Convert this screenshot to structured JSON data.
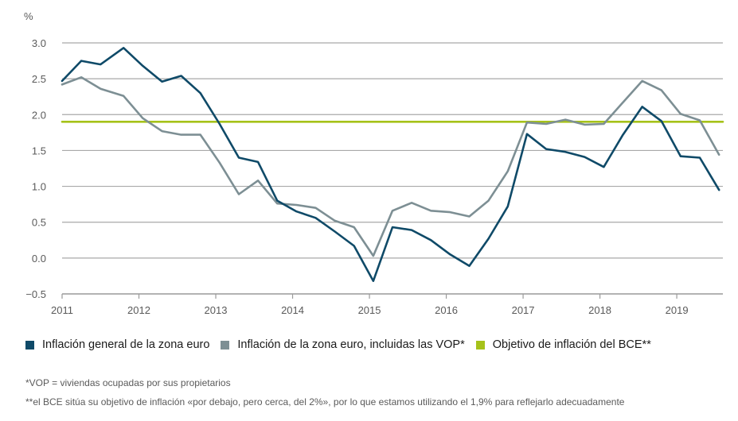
{
  "chart_data": {
    "type": "line",
    "unit_label": "%",
    "xlim": [
      2011,
      2019.6
    ],
    "ylim": [
      -0.5,
      3.0
    ],
    "yticks": [
      3.0,
      2.5,
      2.0,
      1.5,
      1.0,
      0.5,
      0.0,
      -0.5
    ],
    "ytick_labels": [
      "3.0",
      "2.5",
      "2.0",
      "1.5",
      "1.0",
      "0.5",
      "0.0",
      "−0.5"
    ],
    "xticks": [
      2011,
      2012,
      2013,
      2014,
      2015,
      2016,
      2017,
      2018,
      2019
    ],
    "xtick_labels": [
      "2011",
      "2012",
      "2013",
      "2014",
      "2015",
      "2016",
      "2017",
      "2018",
      "2019"
    ],
    "grid": "horizontal",
    "series": [
      {
        "name": "Inflación general de la zona euro",
        "color": "#0f4a68",
        "x": [
          2011.0,
          2011.25,
          2011.5,
          2011.8,
          2012.05,
          2012.3,
          2012.55,
          2012.8,
          2013.05,
          2013.3,
          2013.55,
          2013.8,
          2014.05,
          2014.3,
          2014.55,
          2014.8,
          2015.05,
          2015.3,
          2015.55,
          2015.8,
          2016.05,
          2016.3,
          2016.55,
          2016.8,
          2017.05,
          2017.3,
          2017.55,
          2017.8,
          2018.05,
          2018.3,
          2018.55,
          2018.8,
          2019.05,
          2019.3,
          2019.55
        ],
        "y": [
          2.47,
          2.75,
          2.7,
          2.93,
          2.68,
          2.46,
          2.54,
          2.3,
          1.87,
          1.4,
          1.34,
          0.8,
          0.65,
          0.56,
          0.37,
          0.17,
          -0.32,
          0.43,
          0.39,
          0.25,
          0.05,
          -0.11,
          0.27,
          0.72,
          1.73,
          1.52,
          1.48,
          1.41,
          1.27,
          1.72,
          2.11,
          1.91,
          1.42,
          1.4,
          0.95
        ]
      },
      {
        "name": "Inflación de la zona euro, incluidas las VOP*",
        "color": "#7d8f94",
        "x": [
          2011.0,
          2011.25,
          2011.5,
          2011.8,
          2012.05,
          2012.3,
          2012.55,
          2012.8,
          2013.05,
          2013.3,
          2013.55,
          2013.8,
          2014.05,
          2014.3,
          2014.55,
          2014.8,
          2015.05,
          2015.3,
          2015.55,
          2015.8,
          2016.05,
          2016.3,
          2016.55,
          2016.8,
          2017.05,
          2017.3,
          2017.55,
          2017.8,
          2018.05,
          2018.3,
          2018.55,
          2018.8,
          2019.05,
          2019.3,
          2019.55
        ],
        "y": [
          2.42,
          2.52,
          2.36,
          2.26,
          1.95,
          1.77,
          1.72,
          1.72,
          1.33,
          0.89,
          1.08,
          0.76,
          0.74,
          0.7,
          0.52,
          0.43,
          0.03,
          0.66,
          0.77,
          0.66,
          0.64,
          0.58,
          0.8,
          1.21,
          1.89,
          1.87,
          1.93,
          1.86,
          1.87,
          2.17,
          2.47,
          2.34,
          2.01,
          1.92,
          1.44
        ]
      },
      {
        "name": "Objetivo de inflación del BCE**",
        "color": "#a6c21a",
        "x": [
          2011.0,
          2019.6
        ],
        "y": [
          1.9,
          1.9
        ]
      }
    ]
  },
  "legend": {
    "items": [
      {
        "label": "Inflación general de la zona euro",
        "color": "#0f4a68"
      },
      {
        "label": "Inflación de la zona euro, incluidas las VOP*",
        "color": "#7d8f94"
      },
      {
        "label": "Objetivo de inflación del BCE**",
        "color": "#a6c21a"
      }
    ]
  },
  "footnotes": {
    "vop": "*VOP = viviendas ocupadas por sus propietarios",
    "bce": "**el BCE sitúa su objetivo de inflación «por debajo, pero cerca, del 2%», por lo que estamos utilizando el 1,9% para reflejarlo adecuadamente"
  },
  "colors": {
    "grid": "#a9a9a9",
    "axis": "#9a9a9a",
    "text": "#5a5a5a"
  }
}
